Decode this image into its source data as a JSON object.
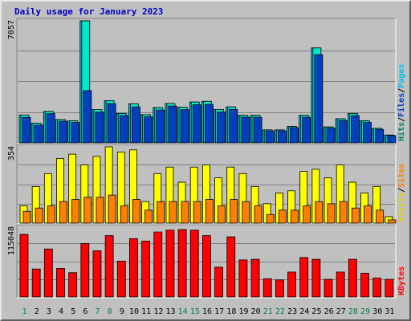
{
  "title": "Daily usage for January 2023",
  "chart_data": {
    "type": "bar",
    "title": "Daily usage for January 2023",
    "categories": [
      "1",
      "2",
      "3",
      "4",
      "5",
      "6",
      "7",
      "8",
      "9",
      "10",
      "11",
      "12",
      "13",
      "14",
      "15",
      "16",
      "17",
      "18",
      "19",
      "20",
      "21",
      "22",
      "23",
      "24",
      "25",
      "26",
      "27",
      "28",
      "29",
      "30",
      "31"
    ],
    "weekend_days": [
      "1",
      "7",
      "8",
      "14",
      "15",
      "21",
      "22",
      "28",
      "29"
    ],
    "colors": {
      "hits": "#00c0f0",
      "files": "#00e8c8",
      "pages": "#0040c0",
      "visits": "#ffff00",
      "sites": "#ff8000",
      "kbytes": "#ff0000",
      "weekday": "#000000",
      "weekend": "#008040"
    },
    "panels": [
      {
        "name": "hits-files-pages",
        "max_label": "7057",
        "ylim": [
          0,
          7057
        ],
        "legend": [
          {
            "text": "Hits",
            "color": "#00806a"
          },
          {
            "text": "Files",
            "color": "#0040c0"
          },
          {
            "text": "Pages",
            "color": "#00c0f0"
          }
        ],
        "series": [
          {
            "name": "Hits",
            "values": [
              1610,
              1140,
              1820,
              1350,
              1270,
              7057,
              1930,
              2440,
              1700,
              2260,
              1630,
              2040,
              2280,
              2060,
              2360,
              2400,
              1930,
              2080,
              1590,
              1590,
              750,
              750,
              950,
              1590,
              5490,
              920,
              1390,
              1700,
              1270,
              840,
              450
            ]
          },
          {
            "name": "Files",
            "values": [
              1610,
              1140,
              1820,
              1350,
              1270,
              7057,
              1930,
              2440,
              1700,
              2260,
              1630,
              2040,
              2280,
              2060,
              2360,
              2400,
              1930,
              2080,
              1590,
              1590,
              750,
              750,
              950,
              1590,
              5490,
              920,
              1390,
              1700,
              1270,
              840,
              450
            ]
          },
          {
            "name": "Pages",
            "values": [
              1470,
              1020,
              1690,
              1250,
              1180,
              3020,
              1780,
              2270,
              1580,
              2080,
              1510,
              1900,
              2130,
              1920,
              2200,
              2230,
              1790,
              1930,
              1480,
              1480,
              690,
              690,
              880,
              1480,
              5100,
              850,
              1290,
              1580,
              1180,
              780,
              420
            ]
          }
        ]
      },
      {
        "name": "visits-sites",
        "max_label": "354",
        "ylim": [
          0,
          354
        ],
        "legend": [
          {
            "text": "Visits",
            "color": "#e0d000"
          },
          {
            "text": "Sites",
            "color": "#ff8000"
          }
        ],
        "series": [
          {
            "name": "Visits",
            "values": [
              80,
              170,
              230,
              300,
              320,
              270,
              310,
              354,
              330,
              340,
              100,
              230,
              260,
              190,
              260,
              270,
              210,
              260,
              230,
              170,
              90,
              140,
              150,
              240,
              250,
              210,
              270,
              190,
              140,
              170,
              30
            ]
          },
          {
            "name": "Sites",
            "values": [
              55,
              70,
              80,
              100,
              110,
              120,
              120,
              130,
              80,
              110,
              60,
              100,
              100,
              100,
              100,
              110,
              80,
              110,
              100,
              80,
              40,
              60,
              60,
              80,
              100,
              90,
              100,
              70,
              80,
              60,
              15
            ]
          }
        ]
      },
      {
        "name": "kbytes",
        "max_label": "115048",
        "ylim": [
          0,
          115048
        ],
        "legend": [
          {
            "text": "KBytes",
            "color": "#ff0000"
          }
        ],
        "series": [
          {
            "name": "KBytes",
            "values": [
              103000,
              46000,
              79000,
              47000,
              40000,
              88000,
              76000,
              101000,
              59000,
              96000,
              92000,
              107000,
              110000,
              111000,
              110000,
              101000,
              49000,
              99000,
              61000,
              62000,
              30000,
              28000,
              41000,
              65000,
              62000,
              29000,
              41000,
              62000,
              39000,
              31000,
              29000
            ]
          }
        ]
      }
    ]
  }
}
